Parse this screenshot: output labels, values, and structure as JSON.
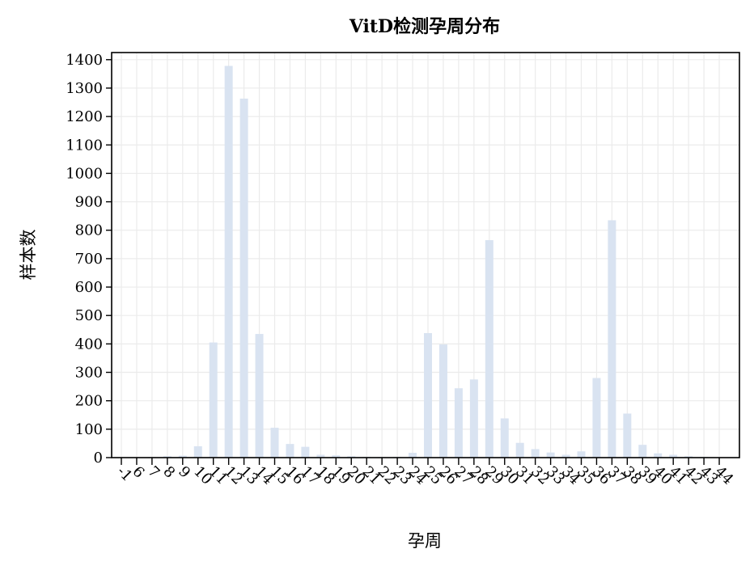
{
  "chart_data": {
    "type": "bar",
    "title": "VitD检测孕周分布",
    "xlabel": "孕周",
    "ylabel": "样本数",
    "categories": [
      "-1",
      "6",
      "7",
      "8",
      "9",
      "10",
      "11",
      "12",
      "13",
      "14",
      "15",
      "16",
      "17",
      "18",
      "19",
      "20",
      "21",
      "22",
      "23",
      "24",
      "25",
      "26",
      "27",
      "28",
      "29",
      "30",
      "31",
      "32",
      "33",
      "34",
      "35",
      "36",
      "37",
      "38",
      "39",
      "40",
      "41",
      "42",
      "43",
      "44"
    ],
    "tick_labels": [
      "-1",
      "6",
      "7",
      "8",
      "9",
      "10",
      "11",
      "12",
      "13",
      "14",
      "15",
      "16",
      "17",
      "18",
      "19",
      "20",
      "21",
      "22",
      "23",
      "24",
      "25",
      "26",
      "27",
      "28",
      "29",
      "30",
      "31",
      "32",
      "33",
      "34",
      "35",
      "36",
      "37",
      "38",
      "39",
      "40",
      "41",
      "42",
      "43",
      "44"
    ],
    "values": [
      1,
      1,
      2,
      5,
      7,
      40,
      405,
      1378,
      1263,
      435,
      105,
      48,
      38,
      10,
      8,
      5,
      3,
      2,
      3,
      17,
      438,
      398,
      244,
      275,
      765,
      138,
      52,
      30,
      18,
      10,
      22,
      280,
      835,
      155,
      45,
      15,
      10,
      5,
      3,
      1
    ],
    "yticks": [
      0,
      100,
      200,
      300,
      400,
      500,
      600,
      700,
      800,
      900,
      1000,
      1100,
      1200,
      1300,
      1400
    ],
    "ylim": [
      0,
      1425
    ],
    "grid": true,
    "bar_color": "#d9e3f1",
    "grid_color": "#ebebeb"
  }
}
